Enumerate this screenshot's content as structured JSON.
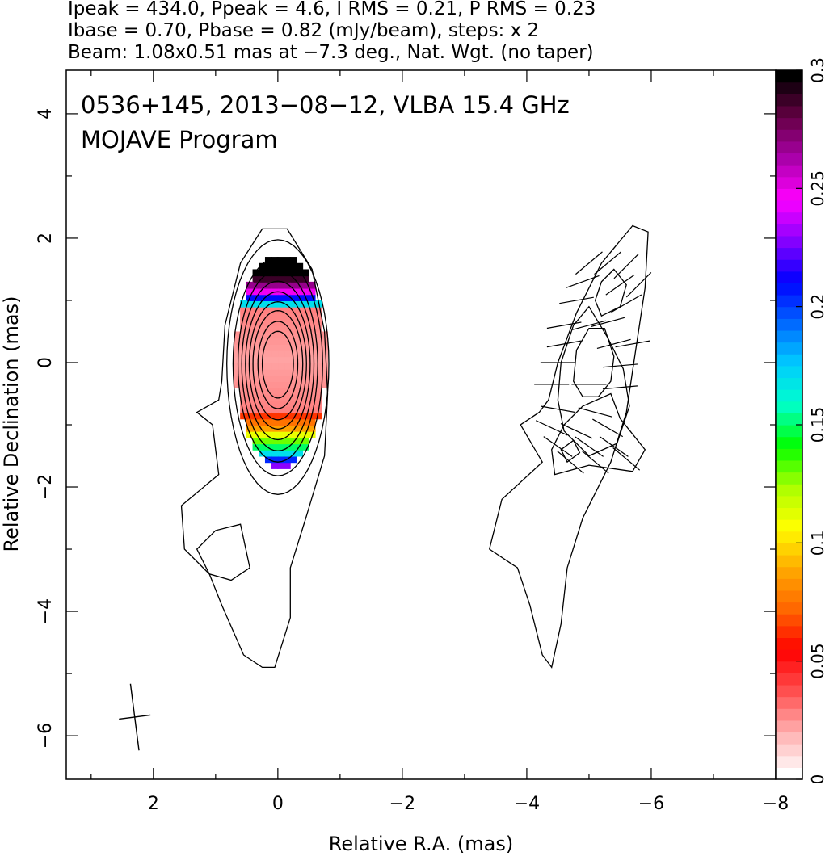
{
  "header": {
    "line1": "Ipeak = 434.0, Ppeak = 4.6, I RMS = 0.21, P RMS = 0.23",
    "line2": "Ibase = 0.70, Pbase = 0.82 (mJy/beam), steps: x 2",
    "line3": "Beam: 1.08x0.51 mas at −7.3 deg., Nat. Wgt. (no taper)"
  },
  "chart_data": {
    "type": "heatmap",
    "title": "0536+145, 2013−08−12, VLBA 15.4 GHz",
    "subtitle": "MOJAVE Program",
    "xlabel": "Relative R.A. (mas)",
    "ylabel": "Relative Declination (mas)",
    "xlim": [
      3.4,
      -8
    ],
    "ylim": [
      -6.7,
      4.7
    ],
    "x_ticks": [
      2,
      0,
      -2,
      -4,
      -6,
      -8
    ],
    "x_tick_labels": [
      "2",
      "0",
      "−2",
      "−4",
      "−6",
      "−8"
    ],
    "y_ticks": [
      4,
      2,
      0,
      -2,
      -4,
      -6
    ],
    "y_tick_labels": [
      "4",
      "2",
      "0",
      "−2",
      "−4",
      "−6"
    ],
    "colorbar": {
      "range": [
        0,
        0.3
      ],
      "ticks": [
        0,
        0.05,
        0.1,
        0.15,
        0.2,
        0.25,
        0.3
      ],
      "tick_labels": [
        "0",
        "0.05",
        "0.1",
        "0.15",
        "0.2",
        "0.25",
        "0.3"
      ],
      "colors": [
        "#ffffff",
        "#ffb0b0",
        "#ff5050",
        "#ff0000",
        "#ff6600",
        "#ffaa00",
        "#ffff00",
        "#aaff00",
        "#00ff00",
        "#00ffcc",
        "#00ccff",
        "#0066ff",
        "#0000ff",
        "#8800ff",
        "#ff00ff",
        "#aa00aa",
        "#660044",
        "#000000"
      ]
    },
    "beam": {
      "major_mas": 1.08,
      "minor_mas": 0.51,
      "pa_deg": -7.3,
      "center": [
        2.3,
        -5.7
      ]
    },
    "ipeak_mJy": 434.0,
    "ppeak_mJy": 4.6,
    "i_rms": 0.21,
    "p_rms": 0.23,
    "ibase": 0.7,
    "pbase": 0.82,
    "step_factor": 2,
    "left_panel": {
      "core_center": [
        0,
        0
      ],
      "contour_levels": [
        {
          "a": 0.25,
          "b": 0.55
        },
        {
          "a": 0.32,
          "b": 0.72
        },
        {
          "a": 0.4,
          "b": 0.9
        },
        {
          "a": 0.46,
          "b": 1.05
        },
        {
          "a": 0.52,
          "b": 1.22
        },
        {
          "a": 0.58,
          "b": 1.4
        },
        {
          "a": 0.64,
          "b": 1.58
        },
        {
          "a": 0.72,
          "b": 1.8
        },
        {
          "a": 0.82,
          "b": 2.1
        }
      ],
      "outer_contour": [
        [
          0.05,
          -4.9
        ],
        [
          -0.2,
          -4.1
        ],
        [
          -0.2,
          -3.3
        ],
        [
          -0.45,
          -2.5
        ],
        [
          -0.75,
          -1.5
        ],
        [
          -0.8,
          -0.5
        ],
        [
          -0.75,
          0.5
        ],
        [
          -0.55,
          1.5
        ],
        [
          -0.15,
          2.15
        ],
        [
          0.25,
          2.15
        ],
        [
          0.6,
          1.6
        ],
        [
          0.85,
          0.6
        ],
        [
          0.9,
          -0.3
        ],
        [
          0.95,
          -0.6
        ],
        [
          1.3,
          -0.8
        ],
        [
          1.05,
          -1.0
        ],
        [
          0.95,
          -1.8
        ],
        [
          1.55,
          -2.3
        ],
        [
          1.5,
          -3.0
        ],
        [
          1.1,
          -3.4
        ],
        [
          0.9,
          -3.9
        ],
        [
          0.55,
          -4.7
        ],
        [
          0.25,
          -4.9
        ],
        [
          0.05,
          -4.9
        ]
      ],
      "inner_loop_contour": [
        [
          0.45,
          -3.3
        ],
        [
          0.6,
          -2.6
        ],
        [
          1.0,
          -2.7
        ],
        [
          1.3,
          -3.0
        ],
        [
          1.1,
          -3.4
        ],
        [
          0.75,
          -3.5
        ],
        [
          0.45,
          -3.3
        ]
      ]
    },
    "right_panel": {
      "x_offset": -5.0,
      "outer_contour": [
        [
          -4.4,
          -4.9
        ],
        [
          -4.55,
          -4.2
        ],
        [
          -4.65,
          -3.3
        ],
        [
          -4.9,
          -2.5
        ],
        [
          -5.35,
          -1.6
        ],
        [
          -5.6,
          -0.8
        ],
        [
          -5.75,
          0.2
        ],
        [
          -5.9,
          1.2
        ],
        [
          -5.95,
          2.1
        ],
        [
          -5.7,
          2.2
        ],
        [
          -5.2,
          1.6
        ],
        [
          -4.8,
          0.8
        ],
        [
          -4.5,
          0.0
        ],
        [
          -4.35,
          -0.6
        ],
        [
          -4.2,
          -0.8
        ],
        [
          -3.9,
          -1.0
        ],
        [
          -4.25,
          -1.6
        ],
        [
          -3.6,
          -2.2
        ],
        [
          -3.4,
          -3.0
        ],
        [
          -3.85,
          -3.3
        ],
        [
          -4.05,
          -3.9
        ],
        [
          -4.25,
          -4.7
        ],
        [
          -4.4,
          -4.9
        ]
      ],
      "inner_contours": [
        [
          [
            -5.0,
            -1.5
          ],
          [
            -5.45,
            -1.3
          ],
          [
            -5.65,
            -0.7
          ],
          [
            -5.55,
            -0.1
          ],
          [
            -5.3,
            0.4
          ],
          [
            -5.0,
            0.9
          ],
          [
            -4.75,
            0.6
          ],
          [
            -4.55,
            0.0
          ],
          [
            -4.5,
            -0.6
          ],
          [
            -4.6,
            -1.1
          ],
          [
            -5.0,
            -1.5
          ]
        ],
        [
          [
            -4.45,
            -1.8
          ],
          [
            -5.0,
            -1.65
          ],
          [
            -5.7,
            -1.75
          ],
          [
            -5.9,
            -1.4
          ],
          [
            -5.5,
            -0.9
          ],
          [
            -5.35,
            -0.5
          ],
          [
            -4.9,
            -0.7
          ],
          [
            -4.6,
            -1.0
          ],
          [
            -4.4,
            -1.4
          ],
          [
            -4.45,
            -1.8
          ]
        ],
        [
          [
            -5.15,
            -0.55
          ],
          [
            -5.35,
            -0.3
          ],
          [
            -5.4,
            0.1
          ],
          [
            -5.25,
            0.55
          ],
          [
            -5.0,
            0.55
          ],
          [
            -4.8,
            0.2
          ],
          [
            -4.75,
            -0.3
          ],
          [
            -4.9,
            -0.55
          ],
          [
            -5.15,
            -0.55
          ]
        ],
        [
          [
            -5.2,
            0.75
          ],
          [
            -5.5,
            0.9
          ],
          [
            -5.6,
            1.25
          ],
          [
            -5.4,
            1.5
          ],
          [
            -5.2,
            1.3
          ],
          [
            -5.1,
            1.0
          ],
          [
            -5.2,
            0.75
          ]
        ],
        [
          [
            -4.55,
            -1.4
          ],
          [
            -4.75,
            -1.25
          ],
          [
            -4.85,
            -1.45
          ],
          [
            -4.65,
            -1.6
          ],
          [
            -4.55,
            -1.4
          ]
        ]
      ],
      "evpa_vectors": [
        {
          "x": -5.0,
          "y": 1.6,
          "ang": -40
        },
        {
          "x": -5.3,
          "y": 1.6,
          "ang": -40
        },
        {
          "x": -5.6,
          "y": 1.55,
          "ang": -45
        },
        {
          "x": -4.9,
          "y": 1.3,
          "ang": -20
        },
        {
          "x": -5.5,
          "y": 1.25,
          "ang": -35
        },
        {
          "x": -5.8,
          "y": 1.25,
          "ang": -45
        },
        {
          "x": -4.8,
          "y": 1.0,
          "ang": -10
        },
        {
          "x": -5.6,
          "y": 0.95,
          "ang": -30
        },
        {
          "x": -4.6,
          "y": 0.6,
          "ang": -10
        },
        {
          "x": -5.0,
          "y": 0.6,
          "ang": -15
        },
        {
          "x": -5.3,
          "y": 0.65,
          "ang": -15
        },
        {
          "x": -4.6,
          "y": 0.3,
          "ang": -10
        },
        {
          "x": -5.4,
          "y": 0.3,
          "ang": -15
        },
        {
          "x": -5.7,
          "y": 0.3,
          "ang": -10
        },
        {
          "x": -4.5,
          "y": 0.0,
          "ang": 0
        },
        {
          "x": -5.5,
          "y": -0.05,
          "ang": -5
        },
        {
          "x": -4.4,
          "y": -0.35,
          "ang": 0
        },
        {
          "x": -5.0,
          "y": -0.35,
          "ang": 0
        },
        {
          "x": -5.5,
          "y": -0.4,
          "ang": -5
        },
        {
          "x": -4.5,
          "y": -0.75,
          "ang": 10
        },
        {
          "x": -5.1,
          "y": -0.8,
          "ang": 15
        },
        {
          "x": -4.4,
          "y": -1.05,
          "ang": 25
        },
        {
          "x": -4.8,
          "y": -1.1,
          "ang": 25
        },
        {
          "x": -5.3,
          "y": -1.05,
          "ang": 30
        },
        {
          "x": -4.5,
          "y": -1.35,
          "ang": 35
        },
        {
          "x": -5.0,
          "y": -1.35,
          "ang": 35
        },
        {
          "x": -5.4,
          "y": -1.35,
          "ang": 35
        },
        {
          "x": -4.7,
          "y": -1.6,
          "ang": 40
        },
        {
          "x": -5.1,
          "y": -1.6,
          "ang": 40
        },
        {
          "x": -5.6,
          "y": -1.55,
          "ang": 40
        }
      ]
    }
  }
}
